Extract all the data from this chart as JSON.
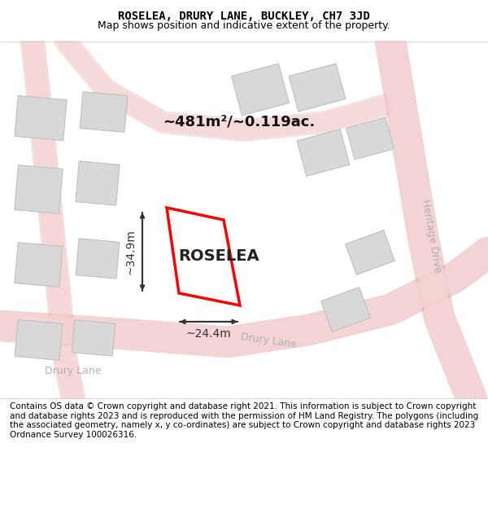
{
  "title": "ROSELEA, DRURY LANE, BUCKLEY, CH7 3JD",
  "subtitle": "Map shows position and indicative extent of the property.",
  "footer": "Contains OS data © Crown copyright and database right 2021. This information is subject to Crown copyright and database rights 2023 and is reproduced with the permission of HM Land Registry. The polygons (including the associated geometry, namely x, y co-ordinates) are subject to Crown copyright and database rights 2023 Ordnance Survey 100026316.",
  "property_name": "ROSELEA",
  "area_label": "~481m²/~0.119ac.",
  "width_label": "~24.4m",
  "height_label": "~34.9m",
  "bg_color": "#ffffff",
  "map_bg": "#f5f5f5",
  "road_color": "#e8c8c8",
  "road_fill": "#f0d8d8",
  "building_color": "#d8d8d8",
  "building_outline": "#cccccc",
  "plot_color": "#ff0000",
  "dim_color": "#333333",
  "road_label_color": "#aaaaaa",
  "title_fontsize": 10,
  "subtitle_fontsize": 9,
  "footer_fontsize": 7.5,
  "property_fontsize": 14,
  "area_fontsize": 13,
  "dim_fontsize": 10,
  "road_label_fontsize": 9
}
